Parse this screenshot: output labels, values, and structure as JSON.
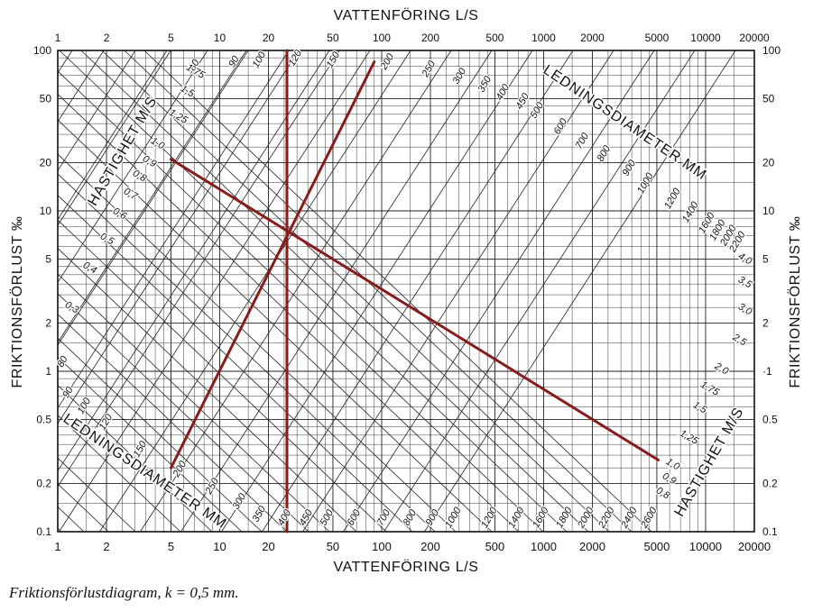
{
  "chart_data": {
    "type": "nomogram",
    "x_axis": {
      "label_top": "VATTENFÖRING L/S",
      "label_bottom": "VATTENFÖRING L/S",
      "scale": "log",
      "range": [
        1,
        20000
      ],
      "ticks": [
        {
          "value": 1,
          "label": "1"
        },
        {
          "value": 2,
          "label": "2"
        },
        {
          "value": 5,
          "label": "5"
        },
        {
          "value": 10,
          "label": "10"
        },
        {
          "value": 20,
          "label": "20"
        },
        {
          "value": 50,
          "label": "50"
        },
        {
          "value": 100,
          "label": "100"
        },
        {
          "value": 200,
          "label": "200"
        },
        {
          "value": 500,
          "label": "500"
        },
        {
          "value": 1000,
          "label": "1000"
        },
        {
          "value": 2000,
          "label": "2000"
        },
        {
          "value": 5000,
          "label": "5000"
        },
        {
          "value": 10000,
          "label": "10000"
        },
        {
          "value": 20000,
          "label": "20000"
        }
      ]
    },
    "y_axis": {
      "label_left": "FRIKTIONSFÖRLUST ‰",
      "label_right": "FRIKTIONSFÖRLUST ‰",
      "scale": "log",
      "range": [
        0.1,
        100
      ],
      "ticks": [
        {
          "value": 0.1,
          "label": "0.1"
        },
        {
          "value": 0.2,
          "label": "0.2"
        },
        {
          "value": 0.5,
          "label": "0.5"
        },
        {
          "value": 1,
          "label": "1"
        },
        {
          "value": 2,
          "label": "2"
        },
        {
          "value": 5,
          "label": "5"
        },
        {
          "value": 10,
          "label": "10"
        },
        {
          "value": 20,
          "label": "20"
        },
        {
          "value": 50,
          "label": "50"
        },
        {
          "value": 100,
          "label": "100"
        }
      ],
      "right_tick_labels": {
        "1": "·1"
      }
    },
    "diameter_series": {
      "title_top": "LEDNINGSDIAMETER MM",
      "title_bottom": "LEDNINGSDIAMETER MM",
      "labels_top": [
        "80",
        "90",
        "100",
        "120",
        "150",
        "200",
        "250",
        "300",
        "350",
        "400",
        "450",
        "500",
        "600",
        "700",
        "800",
        "900",
        "1000",
        "1200",
        "1400",
        "1600",
        "1800",
        "2000",
        "2200"
      ],
      "labels_bottom": [
        "80",
        "90",
        "100",
        "120",
        "150",
        "200",
        "250",
        "300",
        "350",
        "400",
        "450",
        "500",
        "600",
        "700",
        "800",
        "900",
        "1000",
        "1200",
        "1400",
        "1600",
        "1800",
        "2000",
        "2200",
        "2400",
        "2600"
      ]
    },
    "velocity_series": {
      "title_left": "HASTIGHET M/S",
      "title_right": "HASTIGHET M/S",
      "labels_left": [
        "1,75",
        "1,5",
        "1,25",
        "1,0",
        "0,9",
        "0,8",
        "0,7",
        "0,6",
        "0,5",
        "0,4",
        "0,3"
      ],
      "labels_right": [
        "4,0",
        "3,5",
        "3,0",
        "2,5",
        "2,0",
        "1,75",
        "1,5",
        "1,25",
        "1,0",
        "0,9",
        "0,8"
      ]
    },
    "example_lines": [
      {
        "name": "vertical",
        "points": [
          [
            26,
            0.1
          ],
          [
            26,
            100
          ]
        ],
        "color": "#8b1a1a"
      },
      {
        "name": "diagonal-steep",
        "points": [
          [
            5,
            0.25
          ],
          [
            90,
            85
          ]
        ],
        "color": "#8b1a1a"
      },
      {
        "name": "diagonal-long",
        "points": [
          [
            5,
            21
          ],
          [
            5100,
            0.28
          ]
        ],
        "color": "#8b1a1a"
      }
    ],
    "grid": true
  },
  "caption": "Friktionsförlustdiagram, k = 0,5 mm."
}
